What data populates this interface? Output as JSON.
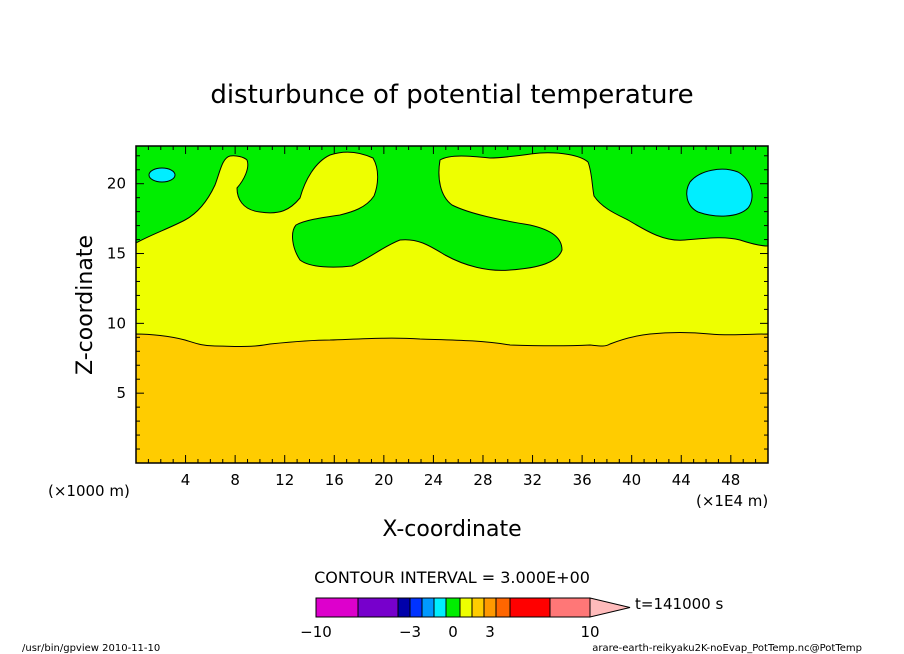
{
  "chart_data": {
    "type": "heatmap",
    "title": "disturbunce of potential temperature",
    "xlabel": "X-coordinate",
    "ylabel": "Z-coordinate",
    "x_unit_left": "(×1000 m)",
    "x_unit_right": "(×1E4 m)",
    "xlim": [
      0,
      51
    ],
    "ylim": [
      0,
      22.7
    ],
    "x_ticks": [
      4,
      8,
      12,
      16,
      20,
      24,
      28,
      32,
      36,
      40,
      44,
      48
    ],
    "y_ticks": [
      5,
      10,
      15,
      20
    ],
    "regions": [
      {
        "name": "orange band",
        "range": [
          3,
          6
        ],
        "color": "#ffcc00",
        "z_top_approx": 9.2
      },
      {
        "name": "yellow band",
        "range": [
          0,
          3
        ],
        "color": "#eeff00",
        "z_top_approx": 16.0
      },
      {
        "name": "green band",
        "range": [
          -3,
          0
        ],
        "color": "#00ee00"
      },
      {
        "name": "cyan band",
        "range": [
          -6,
          -3
        ],
        "color": "#00eeff",
        "cells_center_x": [
          2.2,
          47.0
        ],
        "cells_center_z": [
          20.6,
          19.7
        ]
      }
    ],
    "contour_interval_text": "CONTOUR INTERVAL = 3.000E+00",
    "colorbar": {
      "colors": [
        "#dd00cc",
        "#7700cc",
        "#0000aa",
        "#0033ff",
        "#0099ff",
        "#00eeff",
        "#00ee00",
        "#eeff00",
        "#ffcc00",
        "#ff9900",
        "#ff6600",
        "#ff0000",
        "#ff7777",
        "#ffbbbb"
      ],
      "tick_labels": [
        "−10",
        "−3",
        "0",
        "3",
        "10"
      ]
    },
    "time_label": "t=141000 s",
    "grid": false,
    "legend": "bottom"
  },
  "footer": {
    "left": "/usr/bin/gpview   2010-11-10",
    "right": "arare-earth-reikyaku2K-noEvap_PotTemp.nc@PotTemp"
  }
}
